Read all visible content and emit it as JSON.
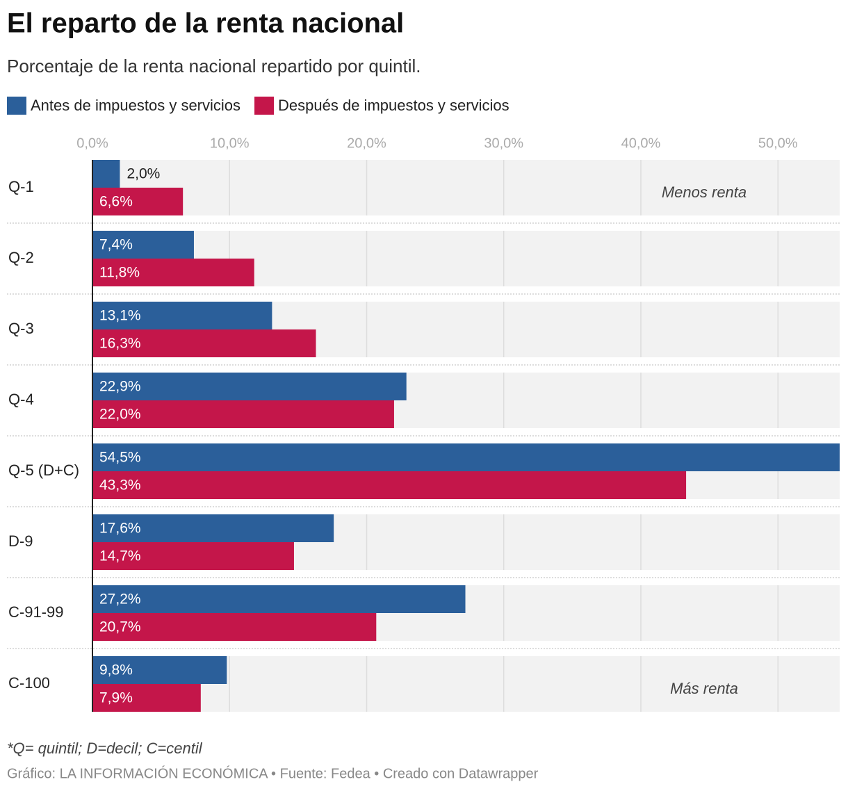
{
  "chart_data": {
    "type": "grouped-barh",
    "title": "El reparto de la renta nacional",
    "subtitle": "Porcentaje de la renta nacional repartido por quintil.",
    "categories": [
      "Q-1",
      "Q-2",
      "Q-3",
      "Q-4",
      "Q-5 (D+C)",
      "D-9",
      "C-91-99",
      "C-100"
    ],
    "series": [
      {
        "name": "Antes de impuestos y servicios",
        "color": "#2b5f9a",
        "values": [
          2.0,
          7.4,
          13.1,
          22.9,
          54.5,
          17.6,
          27.2,
          9.8
        ],
        "value_labels": [
          "2,0%",
          "7,4%",
          "13,1%",
          "22,9%",
          "54,5%",
          "17,6%",
          "27,2%",
          "9,8%"
        ]
      },
      {
        "name": "Después de impuestos y servicios",
        "color": "#c4164a",
        "values": [
          6.6,
          11.8,
          16.3,
          22.0,
          43.3,
          14.7,
          20.7,
          7.9
        ],
        "value_labels": [
          "6,6%",
          "11,8%",
          "16,3%",
          "22,0%",
          "43,3%",
          "14,7%",
          "20,7%",
          "7,9%"
        ]
      }
    ],
    "xlim": [
      0,
      54.5
    ],
    "xticks": [
      {
        "value": 0,
        "label": "0,0%"
      },
      {
        "value": 10,
        "label": "10,0%"
      },
      {
        "value": 20,
        "label": "20,0%"
      },
      {
        "value": 30,
        "label": "30,0%"
      },
      {
        "value": 40,
        "label": "40,0%"
      },
      {
        "value": 50,
        "label": "50,0%"
      }
    ],
    "grid": true,
    "annotations": [
      "Menos renta",
      "Más renta"
    ],
    "note": "*Q= quintil; D=decil; C=centil",
    "credit": "Gráfico: LA INFORMACIÓN ECONÓMICA • Fuente: Fedea  • Creado con Datawrapper"
  }
}
